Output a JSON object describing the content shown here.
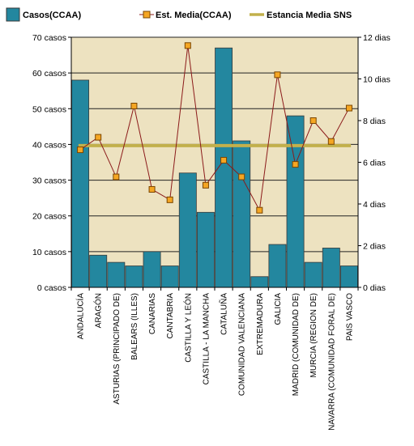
{
  "legend": {
    "bars_label": "Casos(CCAA)",
    "line_label": "Est. Media(CCAA)",
    "ref_label": "Estancia Media SNS"
  },
  "colors": {
    "plot_bg": "#EDE2C0",
    "bar": "#23879F",
    "bar_edge": "#3A3A3A",
    "line": "#8B1A1A",
    "marker_fill": "#F5A623",
    "marker_edge": "#7A4500",
    "ref_line": "#C2B04C",
    "grid": "#222222"
  },
  "chart_data": {
    "type": "bar",
    "categories": [
      "ANDALUCÍA",
      "ARAGÓN",
      "ASTURIAS (PRINCIPADO DE)",
      "BALEARS (ILLES)",
      "CANARIAS",
      "CANTABRIA",
      "CASTILLA Y LEÓN",
      "CASTILLA - LA MANCHA",
      "CATALUÑA",
      "COMUNIDAD VALENCIANA",
      "EXTREMADURA",
      "GALICIA",
      "MADRID (COMUNIDAD DE)",
      "MURCIA (REGION DE)",
      "NAVARRA (COMUNIDAD FORAL DE)",
      "PAIS VASCO"
    ],
    "series": [
      {
        "name": "Casos(CCAA)",
        "type": "bar",
        "axis": "left",
        "values": [
          58,
          9,
          7,
          6,
          10,
          6,
          32,
          21,
          67,
          41,
          3,
          12,
          48,
          7,
          11,
          6
        ]
      },
      {
        "name": "Est. Media(CCAA)",
        "type": "line",
        "axis": "right",
        "values": [
          6.6,
          7.2,
          5.3,
          8.7,
          4.7,
          4.2,
          11.6,
          4.9,
          6.1,
          5.3,
          3.7,
          10.2,
          5.9,
          8.0,
          7.0,
          8.6
        ]
      },
      {
        "name": "Estancia Media SNS",
        "type": "reference",
        "axis": "right",
        "value": 6.8
      }
    ],
    "y_left": {
      "ylim": [
        0,
        70
      ],
      "ticks": [
        0,
        10,
        20,
        30,
        40,
        50,
        60,
        70
      ],
      "unit": "casos"
    },
    "y_right": {
      "ylim": [
        0,
        12
      ],
      "ticks": [
        0,
        2,
        4,
        6,
        8,
        10,
        12
      ],
      "unit": "dias"
    },
    "grid": true,
    "legend_position": "top"
  }
}
